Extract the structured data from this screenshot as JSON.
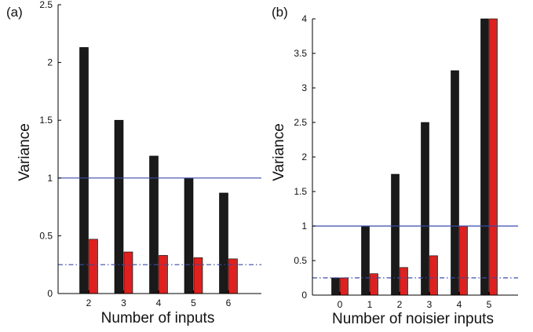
{
  "chart_data": [
    {
      "type": "bar",
      "panel_label": "(a)",
      "xlabel": "Number of inputs",
      "ylabel": "Variance",
      "categories": [
        "2",
        "3",
        "4",
        "5",
        "6"
      ],
      "series": [
        {
          "values": [
            2.13,
            1.5,
            1.19,
            1.0,
            0.87
          ],
          "color": "#1a1a1a"
        },
        {
          "values": [
            0.47,
            0.36,
            0.33,
            0.31,
            0.3
          ],
          "color": "#e0201e"
        }
      ],
      "ylim": [
        0,
        2.5
      ],
      "yticks": [
        "0",
        "0.5",
        "1",
        "1.5",
        "2",
        "2.5"
      ],
      "reference_lines": [
        {
          "y": 1.0,
          "style": "solid",
          "color": "#3b4aa8"
        },
        {
          "y": 0.25,
          "style": "dash-dot",
          "color": "#3b4aa8"
        }
      ],
      "grid": false
    },
    {
      "type": "bar",
      "panel_label": "(b)",
      "xlabel": "Number of noisier inputs",
      "ylabel": "Variance",
      "categories": [
        "0",
        "1",
        "2",
        "3",
        "4",
        "5"
      ],
      "series": [
        {
          "values": [
            0.25,
            1.0,
            1.75,
            2.5,
            3.25,
            4.0
          ],
          "color": "#1a1a1a"
        },
        {
          "values": [
            0.25,
            0.31,
            0.4,
            0.57,
            1.0,
            4.0
          ],
          "color": "#e0201e"
        }
      ],
      "ylim": [
        0,
        4
      ],
      "yticks": [
        "0",
        "0.5",
        "1",
        "1.5",
        "2",
        "2.5",
        "3",
        "3.5",
        "4"
      ],
      "reference_lines": [
        {
          "y": 1.0,
          "style": "solid",
          "color": "#3b4aa8"
        },
        {
          "y": 0.25,
          "style": "dash-dot",
          "color": "#3b4aa8"
        }
      ],
      "grid": false
    }
  ]
}
